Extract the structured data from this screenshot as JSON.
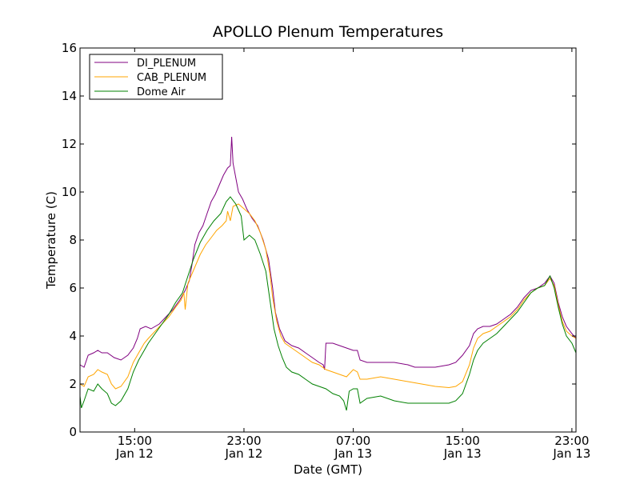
{
  "chart_data": {
    "type": "line",
    "title": "APOLLO Plenum Temperatures",
    "xlabel": "Date (GMT)",
    "ylabel": "Temperature (C)",
    "xlim": [
      11.0,
      47.3
    ],
    "ylim": [
      0,
      16
    ],
    "x_unit": "hours since 00:00 Jan 12 (GMT)",
    "yticks": [
      0,
      2,
      4,
      6,
      8,
      10,
      12,
      14,
      16
    ],
    "xticks": [
      {
        "value": 15,
        "time": "15:00",
        "date": "Jan 12"
      },
      {
        "value": 23,
        "time": "23:00",
        "date": "Jan 12"
      },
      {
        "value": 31,
        "time": "07:00",
        "date": "Jan 13"
      },
      {
        "value": 39,
        "time": "15:00",
        "date": "Jan 13"
      },
      {
        "value": 47,
        "time": "23:00",
        "date": "Jan 13"
      }
    ],
    "legend_position": "top-left",
    "series": [
      {
        "name": "DI_PLENUM",
        "color": "#800080",
        "points": [
          [
            11.0,
            2.8
          ],
          [
            11.3,
            2.7
          ],
          [
            11.6,
            3.2
          ],
          [
            12.0,
            3.3
          ],
          [
            12.3,
            3.4
          ],
          [
            12.6,
            3.3
          ],
          [
            13.0,
            3.3
          ],
          [
            13.5,
            3.1
          ],
          [
            14.0,
            3.0
          ],
          [
            14.5,
            3.2
          ],
          [
            14.9,
            3.5
          ],
          [
            15.2,
            3.9
          ],
          [
            15.4,
            4.3
          ],
          [
            15.8,
            4.4
          ],
          [
            16.2,
            4.3
          ],
          [
            16.8,
            4.5
          ],
          [
            17.3,
            4.8
          ],
          [
            17.8,
            5.1
          ],
          [
            18.3,
            5.5
          ],
          [
            18.7,
            5.9
          ],
          [
            19.0,
            6.3
          ],
          [
            19.2,
            7.0
          ],
          [
            19.4,
            7.8
          ],
          [
            19.7,
            8.3
          ],
          [
            20.0,
            8.6
          ],
          [
            20.3,
            9.1
          ],
          [
            20.6,
            9.6
          ],
          [
            20.9,
            9.9
          ],
          [
            21.2,
            10.3
          ],
          [
            21.5,
            10.7
          ],
          [
            21.8,
            11.0
          ],
          [
            22.0,
            11.1
          ],
          [
            22.1,
            12.3
          ],
          [
            22.2,
            11.2
          ],
          [
            22.4,
            10.6
          ],
          [
            22.6,
            10.0
          ],
          [
            22.9,
            9.7
          ],
          [
            23.2,
            9.3
          ],
          [
            23.6,
            8.9
          ],
          [
            24.0,
            8.6
          ],
          [
            24.4,
            8.0
          ],
          [
            24.8,
            7.2
          ],
          [
            25.1,
            6.0
          ],
          [
            25.3,
            5.0
          ],
          [
            25.6,
            4.3
          ],
          [
            26.0,
            3.8
          ],
          [
            26.5,
            3.6
          ],
          [
            27.0,
            3.5
          ],
          [
            27.5,
            3.3
          ],
          [
            28.0,
            3.1
          ],
          [
            28.5,
            2.9
          ],
          [
            28.8,
            2.8
          ],
          [
            28.9,
            2.6
          ],
          [
            29.0,
            3.7
          ],
          [
            29.5,
            3.7
          ],
          [
            30.0,
            3.6
          ],
          [
            30.5,
            3.5
          ],
          [
            31.0,
            3.4
          ],
          [
            31.3,
            3.4
          ],
          [
            31.5,
            3.0
          ],
          [
            32.0,
            2.9
          ],
          [
            33.0,
            2.9
          ],
          [
            34.0,
            2.9
          ],
          [
            35.0,
            2.8
          ],
          [
            35.5,
            2.7
          ],
          [
            36.0,
            2.7
          ],
          [
            37.0,
            2.7
          ],
          [
            38.0,
            2.8
          ],
          [
            38.5,
            2.9
          ],
          [
            39.0,
            3.2
          ],
          [
            39.5,
            3.6
          ],
          [
            39.8,
            4.1
          ],
          [
            40.1,
            4.3
          ],
          [
            40.5,
            4.4
          ],
          [
            41.0,
            4.4
          ],
          [
            41.5,
            4.5
          ],
          [
            42.0,
            4.7
          ],
          [
            42.5,
            4.9
          ],
          [
            43.0,
            5.2
          ],
          [
            43.5,
            5.6
          ],
          [
            44.0,
            5.9
          ],
          [
            44.5,
            6.0
          ],
          [
            45.0,
            6.2
          ],
          [
            45.4,
            6.5
          ],
          [
            45.7,
            6.2
          ],
          [
            46.0,
            5.4
          ],
          [
            46.3,
            4.8
          ],
          [
            46.6,
            4.4
          ],
          [
            47.0,
            4.1
          ],
          [
            47.3,
            3.9
          ]
        ]
      },
      {
        "name": "CAB_PLENUM",
        "color": "#ffa500",
        "points": [
          [
            11.0,
            2.0
          ],
          [
            11.3,
            1.9
          ],
          [
            11.6,
            2.3
          ],
          [
            12.0,
            2.4
          ],
          [
            12.3,
            2.6
          ],
          [
            12.6,
            2.5
          ],
          [
            13.0,
            2.4
          ],
          [
            13.3,
            2.0
          ],
          [
            13.6,
            1.8
          ],
          [
            14.0,
            1.9
          ],
          [
            14.5,
            2.3
          ],
          [
            14.9,
            2.9
          ],
          [
            15.3,
            3.3
          ],
          [
            15.7,
            3.7
          ],
          [
            16.0,
            3.9
          ],
          [
            16.5,
            4.2
          ],
          [
            17.0,
            4.5
          ],
          [
            17.5,
            4.8
          ],
          [
            18.0,
            5.2
          ],
          [
            18.4,
            5.5
          ],
          [
            18.6,
            5.8
          ],
          [
            18.7,
            5.1
          ],
          [
            18.9,
            6.2
          ],
          [
            19.2,
            6.6
          ],
          [
            19.5,
            7.0
          ],
          [
            19.8,
            7.4
          ],
          [
            20.2,
            7.8
          ],
          [
            20.6,
            8.1
          ],
          [
            21.0,
            8.4
          ],
          [
            21.4,
            8.6
          ],
          [
            21.7,
            8.8
          ],
          [
            21.8,
            9.2
          ],
          [
            22.0,
            8.8
          ],
          [
            22.2,
            9.4
          ],
          [
            22.6,
            9.5
          ],
          [
            23.0,
            9.3
          ],
          [
            23.4,
            9.1
          ],
          [
            23.8,
            8.8
          ],
          [
            24.2,
            8.3
          ],
          [
            24.6,
            7.6
          ],
          [
            24.9,
            6.6
          ],
          [
            25.1,
            5.6
          ],
          [
            25.4,
            4.6
          ],
          [
            25.7,
            4.0
          ],
          [
            26.0,
            3.7
          ],
          [
            26.5,
            3.5
          ],
          [
            27.0,
            3.3
          ],
          [
            27.5,
            3.1
          ],
          [
            28.0,
            2.9
          ],
          [
            28.5,
            2.8
          ],
          [
            29.0,
            2.6
          ],
          [
            29.5,
            2.5
          ],
          [
            30.0,
            2.4
          ],
          [
            30.5,
            2.3
          ],
          [
            31.0,
            2.6
          ],
          [
            31.3,
            2.5
          ],
          [
            31.5,
            2.2
          ],
          [
            32.0,
            2.2
          ],
          [
            33.0,
            2.3
          ],
          [
            34.0,
            2.2
          ],
          [
            35.0,
            2.1
          ],
          [
            36.0,
            2.0
          ],
          [
            37.0,
            1.9
          ],
          [
            38.0,
            1.85
          ],
          [
            38.5,
            1.9
          ],
          [
            39.0,
            2.1
          ],
          [
            39.5,
            2.8
          ],
          [
            39.8,
            3.5
          ],
          [
            40.1,
            3.9
          ],
          [
            40.5,
            4.1
          ],
          [
            41.0,
            4.2
          ],
          [
            41.5,
            4.4
          ],
          [
            42.0,
            4.6
          ],
          [
            42.5,
            4.8
          ],
          [
            43.0,
            5.1
          ],
          [
            43.5,
            5.5
          ],
          [
            44.0,
            5.8
          ],
          [
            44.5,
            6.0
          ],
          [
            45.0,
            6.1
          ],
          [
            45.4,
            6.4
          ],
          [
            45.7,
            6.1
          ],
          [
            46.0,
            5.3
          ],
          [
            46.3,
            4.6
          ],
          [
            46.6,
            4.2
          ],
          [
            47.0,
            4.0
          ],
          [
            47.3,
            3.9
          ]
        ]
      },
      {
        "name": "Dome Air",
        "color": "#008000",
        "points": [
          [
            11.0,
            1.5
          ],
          [
            11.1,
            1.0
          ],
          [
            11.3,
            1.3
          ],
          [
            11.6,
            1.8
          ],
          [
            12.0,
            1.7
          ],
          [
            12.3,
            2.0
          ],
          [
            12.6,
            1.8
          ],
          [
            13.0,
            1.6
          ],
          [
            13.3,
            1.2
          ],
          [
            13.6,
            1.1
          ],
          [
            14.0,
            1.3
          ],
          [
            14.5,
            1.8
          ],
          [
            14.9,
            2.5
          ],
          [
            15.3,
            3.0
          ],
          [
            15.7,
            3.4
          ],
          [
            16.0,
            3.7
          ],
          [
            16.5,
            4.1
          ],
          [
            17.0,
            4.5
          ],
          [
            17.5,
            4.9
          ],
          [
            18.0,
            5.4
          ],
          [
            18.5,
            5.8
          ],
          [
            18.9,
            6.5
          ],
          [
            19.3,
            7.2
          ],
          [
            19.8,
            7.9
          ],
          [
            20.3,
            8.4
          ],
          [
            20.8,
            8.8
          ],
          [
            21.3,
            9.1
          ],
          [
            21.7,
            9.6
          ],
          [
            22.0,
            9.8
          ],
          [
            22.4,
            9.5
          ],
          [
            22.8,
            9.0
          ],
          [
            23.0,
            8.0
          ],
          [
            23.4,
            8.2
          ],
          [
            23.8,
            8.0
          ],
          [
            24.2,
            7.4
          ],
          [
            24.6,
            6.7
          ],
          [
            24.9,
            5.5
          ],
          [
            25.2,
            4.3
          ],
          [
            25.5,
            3.6
          ],
          [
            25.8,
            3.1
          ],
          [
            26.1,
            2.7
          ],
          [
            26.5,
            2.5
          ],
          [
            27.0,
            2.4
          ],
          [
            27.5,
            2.2
          ],
          [
            28.0,
            2.0
          ],
          [
            28.5,
            1.9
          ],
          [
            29.0,
            1.8
          ],
          [
            29.5,
            1.6
          ],
          [
            30.0,
            1.5
          ],
          [
            30.3,
            1.3
          ],
          [
            30.5,
            0.9
          ],
          [
            30.7,
            1.7
          ],
          [
            31.0,
            1.8
          ],
          [
            31.3,
            1.8
          ],
          [
            31.5,
            1.2
          ],
          [
            32.0,
            1.4
          ],
          [
            33.0,
            1.5
          ],
          [
            34.0,
            1.3
          ],
          [
            35.0,
            1.2
          ],
          [
            36.0,
            1.2
          ],
          [
            37.0,
            1.2
          ],
          [
            38.0,
            1.2
          ],
          [
            38.5,
            1.3
          ],
          [
            39.0,
            1.6
          ],
          [
            39.5,
            2.4
          ],
          [
            39.8,
            3.0
          ],
          [
            40.1,
            3.4
          ],
          [
            40.5,
            3.7
          ],
          [
            41.0,
            3.9
          ],
          [
            41.5,
            4.1
          ],
          [
            42.0,
            4.4
          ],
          [
            42.5,
            4.7
          ],
          [
            43.0,
            5.0
          ],
          [
            43.5,
            5.4
          ],
          [
            44.0,
            5.8
          ],
          [
            44.5,
            6.0
          ],
          [
            45.0,
            6.1
          ],
          [
            45.4,
            6.5
          ],
          [
            45.7,
            6.0
          ],
          [
            46.0,
            5.2
          ],
          [
            46.3,
            4.5
          ],
          [
            46.6,
            4.0
          ],
          [
            47.0,
            3.7
          ],
          [
            47.3,
            3.3
          ]
        ]
      }
    ]
  }
}
